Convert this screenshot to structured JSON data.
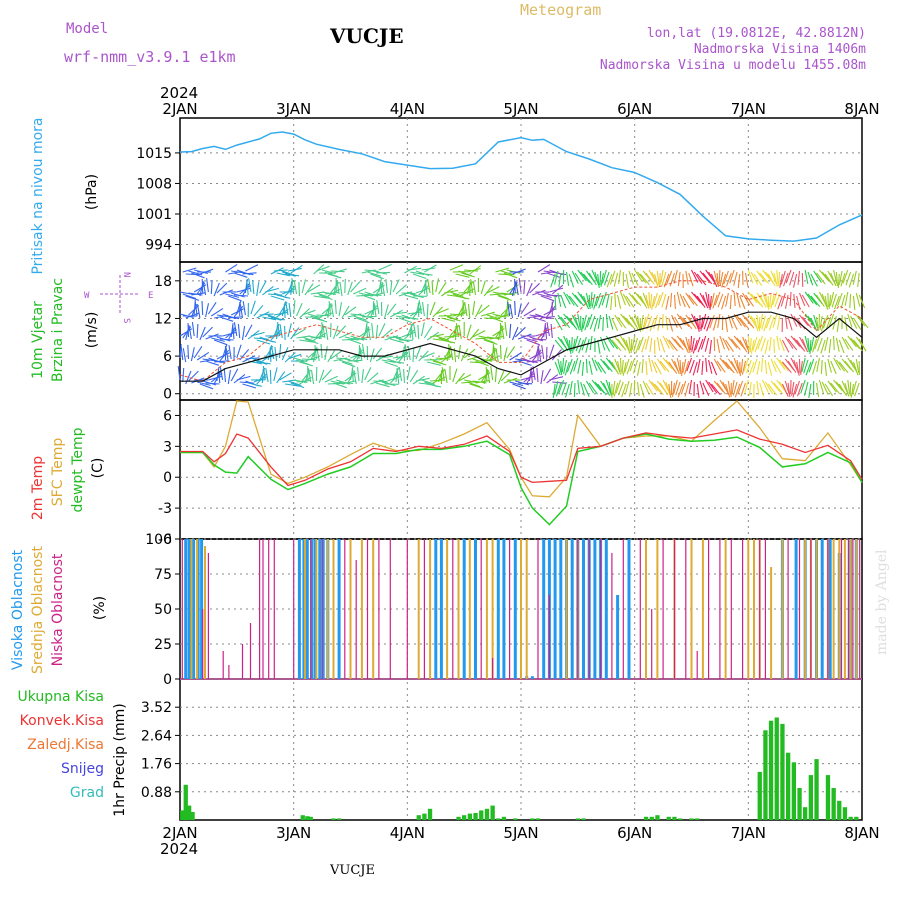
{
  "header": {
    "model_label": "Model",
    "model_name": "wrf-nmm_v3.9.1 e1km",
    "station": "VUCJE",
    "title": "Meteogram",
    "lonlat": "lon,lat (19.0812E, 42.8812N)",
    "altitude": "Nadmorska Visina 1406m",
    "model_altitude": "Nadmorska Visina u modelu 1455.08m",
    "year_top": "2024",
    "year_bottom": "2024",
    "footer_station": "VUCJE",
    "watermark": "made by Angel"
  },
  "colors": {
    "pressure": "#33aaee",
    "wind_label": "#22bb22",
    "temp2m": "#ee3333",
    "sfc": "#ddaa33",
    "dew": "#22cc22",
    "high_cloud": "#2299ee",
    "mid_cloud": "#ddaa33",
    "low_cloud": "#cc2288",
    "model": "#aa55cc",
    "title": "#ddbb66",
    "info": "#aa55cc",
    "precip_total": "#22bb22",
    "precip_conv": "#ee3333",
    "precip_frz": "#ee7733",
    "precip_snow": "#4444dd",
    "precip_hail": "#33bbbb"
  },
  "x_ticks": [
    "2JAN",
    "3JAN",
    "4JAN",
    "5JAN",
    "6JAN",
    "7JAN",
    "8JAN"
  ],
  "panels": {
    "pressure": {
      "title": "Pritisak na nivou mora",
      "unit": "(hPa)"
    },
    "wind": {
      "title1": "10m Vjetar",
      "title2": "Brzina i Pravac",
      "unit": "(m/s)",
      "compass_w": "W",
      "compass_e": "E",
      "compass_n": "N",
      "compass_s": "S"
    },
    "temp": {
      "title1": "2m Temp",
      "title2": "SFC Temp",
      "title3": "dewpt Temp",
      "unit": "(C)"
    },
    "cloud": {
      "title1": "Visoka Oblacnost",
      "title2": "Srednja Oblacnost",
      "title3": "Niska Oblacnost",
      "unit": "(%)"
    },
    "precip": {
      "unit": "1hr Precip (mm)",
      "legend": [
        "Ukupna Kisa",
        "Konvek.Kisa",
        "Zaledj.Kisa",
        "Snijeg",
        "Grad"
      ]
    }
  },
  "chart_data": [
    {
      "type": "line",
      "title": "Pritisak na nivou mora",
      "ylabel": "(hPa)",
      "ylim": [
        990,
        1023
      ],
      "yticks": [
        994,
        1001,
        1008,
        1015
      ],
      "x": [
        0,
        0.1,
        0.2,
        0.3,
        0.4,
        0.5,
        0.6,
        0.7,
        0.8,
        0.9,
        1.0,
        1.1,
        1.2,
        1.4,
        1.6,
        1.8,
        2.0,
        2.2,
        2.4,
        2.6,
        2.8,
        3.0,
        3.1,
        3.2,
        3.4,
        3.6,
        3.8,
        4.0,
        4.2,
        4.4,
        4.6,
        4.8,
        5.0,
        5.2,
        5.4,
        5.6,
        5.8,
        6.0
      ],
      "series": [
        {
          "values": [
            1015.2,
            1015.3,
            1016.0,
            1016.5,
            1015.8,
            1016.8,
            1017.5,
            1018.2,
            1019.5,
            1019.8,
            1019.3,
            1018.0,
            1017.0,
            1015.8,
            1014.8,
            1013.0,
            1012.2,
            1011.4,
            1011.5,
            1012.5,
            1017.5,
            1018.5,
            1017.9,
            1018.1,
            1015.3,
            1013.6,
            1011.6,
            1010.5,
            1008.2,
            1005.5,
            1000.5,
            996.0,
            995.3,
            995.0,
            994.8,
            995.5,
            998.5,
            1000.8
          ]
        }
      ]
    },
    {
      "type": "line",
      "title": "10m Vjetar Brzina i Pravac",
      "ylabel": "(m/s)",
      "ylim": [
        -1,
        21
      ],
      "yticks": [
        0,
        6,
        12,
        18
      ],
      "x": [
        0,
        0.2,
        0.4,
        0.6,
        0.8,
        1.0,
        1.2,
        1.4,
        1.6,
        1.8,
        2.0,
        2.2,
        2.4,
        2.6,
        2.8,
        3.0,
        3.2,
        3.4,
        3.6,
        3.8,
        4.0,
        4.2,
        4.4,
        4.6,
        4.8,
        5.0,
        5.2,
        5.4,
        5.6,
        5.8,
        6.0
      ],
      "series": [
        {
          "name": "gust",
          "values": [
            3,
            2,
            5,
            6,
            9,
            10,
            11,
            10,
            9,
            9,
            11,
            12,
            10,
            8,
            5,
            5,
            10,
            11,
            15,
            16,
            17,
            17,
            18,
            18,
            17,
            15,
            16,
            15,
            10,
            14,
            12
          ]
        },
        {
          "name": "wind",
          "values": [
            2,
            2,
            4,
            5,
            6,
            7,
            7,
            7,
            6,
            6,
            7,
            8,
            7,
            6,
            4,
            3,
            5,
            7,
            8,
            9,
            10,
            11,
            11,
            12,
            12,
            13,
            13,
            12,
            9,
            12,
            9
          ]
        }
      ]
    },
    {
      "type": "line",
      "title": "2m Temp / SFC Temp / dewpt Temp",
      "ylabel": "(C)",
      "ylim": [
        -6,
        7.5
      ],
      "yticks": [
        -6,
        -3,
        0,
        3,
        6
      ],
      "x": [
        0,
        0.2,
        0.3,
        0.4,
        0.5,
        0.6,
        0.8,
        0.95,
        1.1,
        1.3,
        1.5,
        1.7,
        1.9,
        2.1,
        2.3,
        2.5,
        2.7,
        2.9,
        3.0,
        3.1,
        3.25,
        3.4,
        3.5,
        3.7,
        3.9,
        4.1,
        4.3,
        4.5,
        4.7,
        4.9,
        5.1,
        5.3,
        5.5,
        5.7,
        5.9,
        6.0
      ],
      "series": [
        {
          "name": "2m Temp",
          "values": [
            2.5,
            2.5,
            1.5,
            2.3,
            4.2,
            3.8,
            1.0,
            -0.8,
            -0.3,
            0.8,
            1.5,
            2.8,
            2.5,
            3.0,
            2.8,
            3.2,
            4.0,
            2.5,
            0.0,
            -0.5,
            -0.4,
            -0.3,
            2.8,
            3.0,
            3.8,
            4.3,
            4.0,
            3.8,
            4.2,
            4.6,
            3.7,
            3.2,
            2.4,
            3.1,
            1.6,
            -0.2
          ]
        },
        {
          "name": "SFC Temp",
          "values": [
            2.4,
            2.4,
            1.0,
            3.0,
            7.4,
            7.3,
            0.3,
            -0.6,
            0.0,
            1.0,
            2.2,
            3.3,
            2.6,
            2.6,
            3.3,
            4.2,
            5.3,
            2.7,
            0.0,
            -1.8,
            -1.9,
            0.0,
            6.0,
            3.0,
            3.8,
            4.0,
            4.0,
            3.5,
            5.5,
            7.4,
            4.8,
            1.8,
            1.6,
            4.3,
            1.2,
            -0.5
          ]
        },
        {
          "name": "dewpt Temp",
          "values": [
            2.4,
            2.4,
            1.2,
            0.5,
            0.4,
            2.0,
            -0.2,
            -1.2,
            -0.6,
            0.3,
            1.0,
            2.3,
            2.3,
            2.7,
            2.7,
            3.0,
            3.5,
            2.2,
            -1.0,
            -3.0,
            -4.6,
            -2.8,
            2.5,
            3.0,
            3.8,
            4.2,
            3.7,
            3.5,
            3.6,
            3.9,
            2.9,
            1.0,
            1.3,
            2.4,
            1.4,
            -0.5
          ]
        }
      ]
    },
    {
      "type": "bar",
      "title": "Visoka / Srednja / Niska Oblacnost",
      "ylabel": "(%)",
      "ylim": [
        0,
        100
      ],
      "yticks": [
        0,
        25,
        50,
        75,
        100
      ],
      "series": [
        {
          "name": "Visoka Oblacnost",
          "x": [
            0.05,
            0.08,
            0.12,
            0.16,
            0.19,
            1.05,
            1.09,
            1.12,
            1.16,
            1.19,
            1.23,
            1.26,
            1.3,
            1.4,
            2.25,
            2.3,
            2.5,
            2.6,
            2.8,
            2.85,
            2.95,
            3.05,
            3.1,
            3.2,
            3.25,
            3.3,
            3.35,
            3.4,
            3.45,
            3.5,
            3.55,
            3.6,
            3.65,
            3.7,
            3.75,
            3.85,
            3.95,
            5.3,
            5.42,
            5.5,
            5.6,
            5.65,
            5.72,
            5.8,
            5.9,
            5.95
          ],
          "values": [
            100,
            100,
            100,
            100,
            100,
            100,
            100,
            100,
            100,
            100,
            100,
            100,
            100,
            100,
            100,
            100,
            100,
            100,
            100,
            100,
            100,
            2,
            2,
            100,
            100,
            100,
            100,
            100,
            100,
            100,
            100,
            100,
            100,
            100,
            100,
            60,
            100,
            100,
            100,
            100,
            100,
            100,
            100,
            90,
            100,
            100
          ]
        },
        {
          "name": "Srednja Oblacnost",
          "x": [
            0.1,
            0.15,
            0.22,
            1.1,
            1.2,
            1.3,
            1.35,
            1.5,
            1.6,
            1.7,
            2.1,
            2.2,
            2.35,
            2.45,
            2.55,
            2.7,
            2.75,
            3.0,
            3.05,
            3.4,
            3.5,
            4.1,
            4.2,
            4.35,
            4.5,
            4.6,
            4.8,
            5.0,
            5.05,
            5.1,
            5.2,
            5.3,
            5.5,
            5.55,
            5.6,
            5.7,
            5.75,
            5.8,
            5.85,
            5.9,
            5.95
          ],
          "values": [
            100,
            100,
            95,
            100,
            100,
            100,
            100,
            100,
            100,
            100,
            100,
            100,
            100,
            100,
            100,
            100,
            100,
            100,
            100,
            100,
            100,
            100,
            100,
            100,
            100,
            100,
            100,
            100,
            100,
            100,
            80,
            100,
            100,
            100,
            100,
            100,
            100,
            100,
            100,
            100,
            100
          ]
        },
        {
          "name": "Niska Oblacnost",
          "x": [
            0.02,
            0.2,
            0.25,
            0.38,
            0.43,
            0.55,
            0.62,
            0.7,
            0.73,
            0.78,
            0.83,
            1.0,
            1.15,
            1.25,
            1.45,
            1.55,
            1.65,
            1.75,
            1.85,
            2.0,
            2.15,
            2.4,
            2.65,
            2.75,
            2.9,
            3.15,
            3.25,
            3.5,
            3.6,
            3.7,
            3.8,
            3.9,
            4.05,
            4.15,
            4.25,
            4.35,
            4.45,
            4.55,
            4.65,
            4.75,
            4.85,
            4.95,
            5.1,
            5.15,
            5.35,
            5.45,
            5.55,
            5.7,
            5.82,
            5.88,
            5.92,
            5.98
          ],
          "values": [
            100,
            50,
            90,
            20,
            10,
            25,
            40,
            100,
            100,
            100,
            100,
            100,
            100,
            100,
            100,
            85,
            100,
            100,
            100,
            100,
            100,
            100,
            100,
            15,
            100,
            100,
            60,
            100,
            100,
            100,
            90,
            100,
            100,
            50,
            100,
            100,
            100,
            20,
            100,
            100,
            100,
            100,
            100,
            100,
            100,
            100,
            100,
            100,
            100,
            100,
            100,
            100
          ]
        }
      ]
    },
    {
      "type": "bar",
      "title": "1hr Precip",
      "ylabel": "(mm)",
      "ylim": [
        0,
        4.4
      ],
      "yticks": [
        0.88,
        1.76,
        2.64,
        3.52
      ],
      "series": [
        {
          "name": "Ukupna Kisa",
          "x": [
            0.02,
            0.05,
            0.08,
            0.11,
            1.08,
            1.12,
            1.15,
            1.35,
            1.4,
            2.1,
            2.15,
            2.2,
            2.45,
            2.5,
            2.55,
            2.6,
            2.65,
            2.7,
            2.75,
            2.8,
            2.85,
            2.95,
            3.1,
            3.15,
            3.5,
            3.55,
            4.1,
            4.15,
            4.2,
            4.3,
            4.35,
            4.4,
            4.5,
            4.55,
            5.1,
            5.15,
            5.2,
            5.25,
            5.3,
            5.35,
            5.4,
            5.45,
            5.5,
            5.55,
            5.6,
            5.7,
            5.75,
            5.8,
            5.85,
            5.9,
            5.95
          ],
          "values": [
            0.3,
            1.1,
            0.45,
            0.25,
            0.15,
            0.12,
            0.1,
            0.05,
            0.05,
            0.15,
            0.2,
            0.35,
            0.1,
            0.15,
            0.2,
            0.22,
            0.3,
            0.35,
            0.45,
            0.05,
            0.1,
            0.05,
            0.05,
            0.05,
            0.05,
            0.05,
            0.1,
            0.1,
            0.15,
            0.1,
            0.1,
            0.05,
            0.05,
            0.05,
            1.5,
            2.8,
            3.1,
            3.2,
            3.0,
            2.1,
            1.8,
            1.0,
            0.4,
            1.4,
            1.9,
            1.4,
            1.0,
            0.6,
            0.4,
            0.1,
            0.1
          ]
        }
      ]
    }
  ]
}
